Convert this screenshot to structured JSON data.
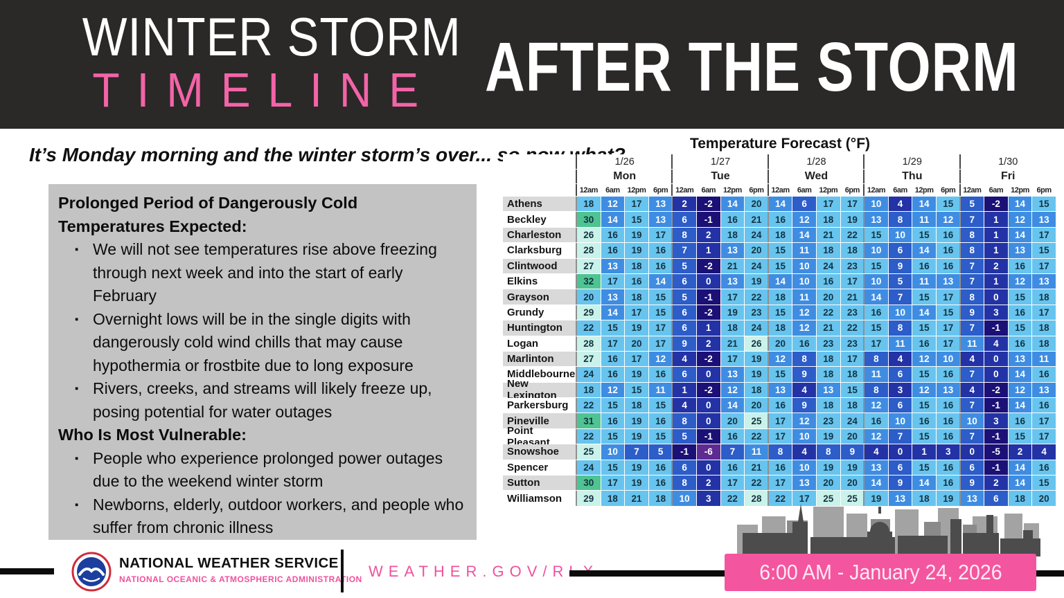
{
  "header": {
    "title_line1": "WINTER STORM",
    "title_line2": "TIMELINE",
    "right_title": "AFTER THE STORM"
  },
  "subtitle": "It’s Monday morning and the winter storm’s over... so now what?",
  "info_box": {
    "heading1": "Prolonged Period of Dangerously Cold Temperatures Expected:",
    "bullets1": [
      "We will not see temperatures rise above freezing through next week and into the start of early February",
      "Overnight lows will be in the single digits with dangerously cold wind chills that may cause hypothermia or frostbite due to long exposure",
      "Rivers, creeks, and streams will likely freeze up, posing potential for water outages"
    ],
    "heading2": "Who Is Most Vulnerable:",
    "bullets2": [
      "People who experience prolonged power outages due to the weekend winter storm",
      "Newborns, elderly, outdoor workers, and people who suffer from chronic illness"
    ]
  },
  "forecast_table": {
    "title": "Temperature Forecast (°F)",
    "days": [
      {
        "date": "1/26",
        "day": "Mon"
      },
      {
        "date": "1/27",
        "day": "Tue"
      },
      {
        "date": "1/28",
        "day": "Wed"
      },
      {
        "date": "1/29",
        "day": "Thu"
      },
      {
        "date": "1/30",
        "day": "Fri"
      }
    ],
    "times": [
      "12am",
      "6am",
      "12pm",
      "6pm"
    ],
    "rows": [
      {
        "city": "Athens",
        "temps": [
          18,
          12,
          17,
          13,
          2,
          -2,
          14,
          20,
          14,
          6,
          17,
          17,
          10,
          4,
          14,
          15,
          5,
          -2,
          14,
          15
        ]
      },
      {
        "city": "Beckley",
        "temps": [
          30,
          14,
          15,
          13,
          6,
          -1,
          16,
          21,
          16,
          12,
          18,
          19,
          13,
          8,
          11,
          12,
          7,
          1,
          12,
          13
        ]
      },
      {
        "city": "Charleston",
        "temps": [
          26,
          16,
          19,
          17,
          8,
          2,
          18,
          24,
          18,
          14,
          21,
          22,
          15,
          10,
          15,
          16,
          8,
          1,
          14,
          17
        ]
      },
      {
        "city": "Clarksburg",
        "temps": [
          28,
          16,
          19,
          16,
          7,
          1,
          13,
          20,
          15,
          11,
          18,
          18,
          10,
          6,
          14,
          16,
          8,
          1,
          13,
          15
        ]
      },
      {
        "city": "Clintwood",
        "temps": [
          27,
          13,
          18,
          16,
          5,
          -2,
          21,
          24,
          15,
          10,
          24,
          23,
          15,
          9,
          16,
          16,
          7,
          2,
          16,
          17
        ]
      },
      {
        "city": "Elkins",
        "temps": [
          32,
          17,
          16,
          14,
          6,
          0,
          13,
          19,
          14,
          10,
          16,
          17,
          10,
          5,
          11,
          13,
          7,
          1,
          12,
          13
        ]
      },
      {
        "city": "Grayson",
        "temps": [
          20,
          13,
          18,
          15,
          5,
          -1,
          17,
          22,
          18,
          11,
          20,
          21,
          14,
          7,
          15,
          17,
          8,
          0,
          15,
          18
        ]
      },
      {
        "city": "Grundy",
        "temps": [
          29,
          14,
          17,
          15,
          6,
          -2,
          19,
          23,
          15,
          12,
          22,
          23,
          16,
          10,
          14,
          15,
          9,
          3,
          16,
          17
        ]
      },
      {
        "city": "Huntington",
        "temps": [
          22,
          15,
          19,
          17,
          6,
          1,
          18,
          24,
          18,
          12,
          21,
          22,
          15,
          8,
          15,
          17,
          7,
          -1,
          15,
          18
        ]
      },
      {
        "city": "Logan",
        "temps": [
          28,
          17,
          20,
          17,
          9,
          2,
          21,
          26,
          20,
          16,
          23,
          23,
          17,
          11,
          16,
          17,
          11,
          4,
          16,
          18
        ]
      },
      {
        "city": "Marlinton",
        "temps": [
          27,
          16,
          17,
          12,
          4,
          -2,
          17,
          19,
          12,
          8,
          18,
          17,
          8,
          4,
          12,
          10,
          4,
          0,
          13,
          11
        ]
      },
      {
        "city": "Middlebourne",
        "temps": [
          24,
          16,
          19,
          16,
          6,
          0,
          13,
          19,
          15,
          9,
          18,
          18,
          11,
          6,
          15,
          16,
          7,
          0,
          14,
          16
        ]
      },
      {
        "city": "New Lexington",
        "temps": [
          18,
          12,
          15,
          11,
          1,
          -2,
          12,
          18,
          13,
          4,
          13,
          15,
          8,
          3,
          12,
          13,
          4,
          -2,
          12,
          13
        ]
      },
      {
        "city": "Parkersburg",
        "temps": [
          22,
          15,
          18,
          15,
          4,
          0,
          14,
          20,
          16,
          9,
          18,
          18,
          12,
          6,
          15,
          16,
          7,
          -1,
          14,
          16
        ]
      },
      {
        "city": "Pineville",
        "temps": [
          31,
          16,
          19,
          16,
          8,
          0,
          20,
          25,
          17,
          12,
          23,
          24,
          16,
          10,
          16,
          16,
          10,
          3,
          16,
          17
        ]
      },
      {
        "city": "Point Pleasant",
        "temps": [
          22,
          15,
          19,
          15,
          5,
          -1,
          16,
          22,
          17,
          10,
          19,
          20,
          12,
          7,
          15,
          16,
          7,
          -1,
          15,
          17
        ]
      },
      {
        "city": "Snowshoe",
        "temps": [
          25,
          10,
          7,
          5,
          -1,
          -6,
          7,
          11,
          8,
          4,
          8,
          9,
          4,
          0,
          1,
          3,
          0,
          -5,
          2,
          4
        ]
      },
      {
        "city": "Spencer",
        "temps": [
          24,
          15,
          19,
          16,
          6,
          0,
          16,
          21,
          16,
          10,
          19,
          19,
          13,
          6,
          15,
          16,
          6,
          -1,
          14,
          16
        ]
      },
      {
        "city": "Sutton",
        "temps": [
          30,
          17,
          19,
          16,
          8,
          2,
          17,
          22,
          17,
          13,
          20,
          20,
          14,
          9,
          14,
          16,
          9,
          2,
          14,
          15
        ]
      },
      {
        "city": "Williamson",
        "temps": [
          29,
          18,
          21,
          18,
          10,
          3,
          22,
          28,
          22,
          17,
          25,
          25,
          19,
          13,
          18,
          19,
          13,
          6,
          18,
          20
        ]
      }
    ],
    "colors": {
      "ge_30": "#4fc493",
      "t25_29": "#c9f2ea",
      "t15_24": "#67c4ef",
      "t10_14": "#3f8de2",
      "t5_9": "#2c5dc8",
      "t0_4": "#2333a6",
      "neg1_neg5": "#1b1076",
      "le_neg6": "#5d2b92",
      "dark_text": "#16323f",
      "light_text": "#ffffff",
      "label_alt_bg": "#d9d9d9",
      "label_bg": "#ffffff"
    }
  },
  "footer": {
    "agency_name": "NATIONAL WEATHER SERVICE",
    "agency_sub": "NATIONAL OCEANIC & ATMOSPHERIC ADMINISTRATION",
    "url": "WEATHER.GOV/RLX",
    "datetime": "6:00 AM - January 24, 2026"
  },
  "theme": {
    "header_bg": "#2b2828",
    "accent_pink": "#f364a7",
    "date_box_pink": "#f4559f",
    "info_box_gray": "#c3c3c3"
  }
}
